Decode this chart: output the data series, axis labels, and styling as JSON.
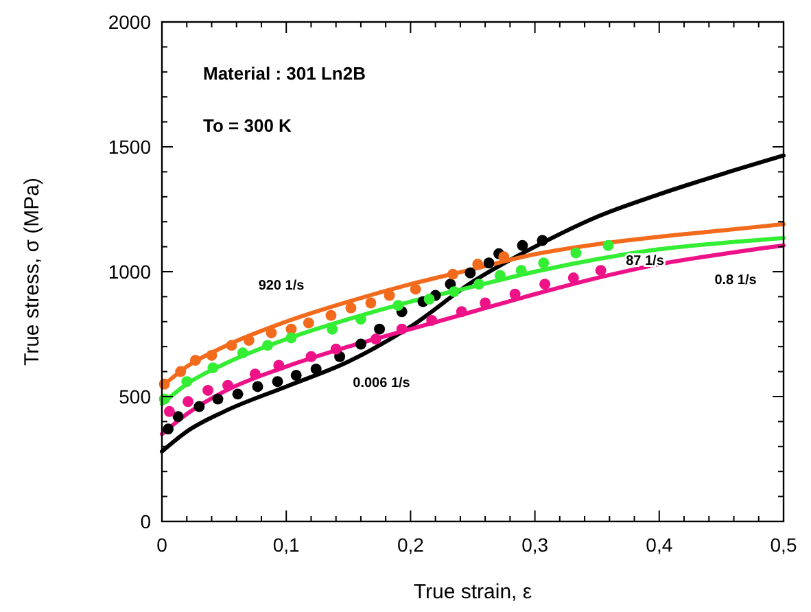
{
  "chart_data": {
    "type": "scatter",
    "xlabel": "True strain, ε",
    "ylabel": "True stress, σ (MPa)",
    "xlim": [
      0,
      0.5
    ],
    "ylim": [
      0,
      2000
    ],
    "xticks": [
      0,
      {
        "value": 0.02,
        "label": null
      },
      {
        "value": 0.04,
        "label": null
      },
      {
        "value": 0.06,
        "label": null
      },
      {
        "value": 0.08,
        "label": null
      },
      {
        "value": 0.1,
        "label": "0,1"
      },
      {
        "value": 0.12,
        "label": null
      },
      {
        "value": 0.14,
        "label": null
      },
      {
        "value": 0.16,
        "label": null
      },
      {
        "value": 0.18,
        "label": null
      },
      {
        "value": 0.2,
        "label": "0,2"
      },
      {
        "value": 0.22,
        "label": null
      },
      {
        "value": 0.24,
        "label": null
      },
      {
        "value": 0.26,
        "label": null
      },
      {
        "value": 0.28,
        "label": null
      },
      {
        "value": 0.3,
        "label": "0,3"
      },
      {
        "value": 0.32,
        "label": null
      },
      {
        "value": 0.34,
        "label": null
      },
      {
        "value": 0.36,
        "label": null
      },
      {
        "value": 0.38,
        "label": null
      },
      {
        "value": 0.4,
        "label": "0,4"
      },
      {
        "value": 0.42,
        "label": null
      },
      {
        "value": 0.44,
        "label": null
      },
      {
        "value": 0.46,
        "label": null
      },
      {
        "value": 0.48,
        "label": null
      },
      {
        "value": 0.5,
        "label": "0,5"
      }
    ],
    "yticks": [
      0,
      {
        "value": 100,
        "label": null
      },
      {
        "value": 200,
        "label": null
      },
      {
        "value": 300,
        "label": null
      },
      {
        "value": 400,
        "label": null
      },
      500,
      {
        "value": 600,
        "label": null
      },
      {
        "value": 700,
        "label": null
      },
      {
        "value": 800,
        "label": null
      },
      {
        "value": 900,
        "label": null
      },
      1000,
      {
        "value": 1100,
        "label": null
      },
      {
        "value": 1200,
        "label": null
      },
      {
        "value": 1300,
        "label": null
      },
      {
        "value": 1400,
        "label": null
      },
      1500,
      {
        "value": 1600,
        "label": null
      },
      {
        "value": 1700,
        "label": null
      },
      {
        "value": 1800,
        "label": null
      },
      {
        "value": 1900,
        "label": null
      },
      2000
    ],
    "grid": false,
    "series": [
      {
        "type": "line",
        "color": "#000000",
        "x": [
          0,
          0.02,
          0.05,
          0.1,
          0.15,
          0.2,
          0.25,
          0.3,
          0.35,
          0.4,
          0.45,
          0.5
        ],
        "values": [
          280,
          360,
          440,
          540,
          640,
          780,
          960,
          1100,
          1220,
          1310,
          1390,
          1465
        ]
      },
      {
        "type": "line",
        "color": "#f26b1d",
        "x": [
          0,
          0.02,
          0.05,
          0.1,
          0.15,
          0.2,
          0.25,
          0.3,
          0.35,
          0.4,
          0.45,
          0.5
        ],
        "values": [
          540,
          620,
          700,
          800,
          880,
          950,
          1010,
          1070,
          1110,
          1140,
          1165,
          1190
        ]
      },
      {
        "type": "line",
        "color": "#33ee33",
        "x": [
          0,
          0.02,
          0.05,
          0.1,
          0.15,
          0.2,
          0.25,
          0.3,
          0.35,
          0.4,
          0.45,
          0.5
        ],
        "values": [
          470,
          550,
          630,
          730,
          810,
          880,
          940,
          1000,
          1050,
          1090,
          1115,
          1135
        ]
      },
      {
        "type": "line",
        "color": "#ee1188",
        "x": [
          0,
          0.02,
          0.05,
          0.1,
          0.15,
          0.2,
          0.25,
          0.3,
          0.35,
          0.4,
          0.45,
          0.5
        ],
        "values": [
          350,
          430,
          520,
          620,
          700,
          770,
          840,
          910,
          975,
          1030,
          1070,
          1105
        ]
      },
      {
        "marker": "circle",
        "color": "#000000",
        "x": [
          0.005,
          0.013,
          0.03,
          0.045,
          0.061,
          0.077,
          0.093,
          0.108,
          0.124,
          0.143,
          0.16,
          0.175,
          0.193,
          0.21,
          0.22,
          0.232,
          0.248,
          0.263,
          0.271,
          0.29,
          0.306
        ],
        "values": [
          370,
          420,
          460,
          490,
          510,
          540,
          560,
          585,
          610,
          660,
          710,
          770,
          840,
          880,
          905,
          950,
          995,
          1035,
          1072,
          1105,
          1125
        ]
      },
      {
        "marker": "circle",
        "color": "#f26b1d",
        "x": [
          0.002,
          0.015,
          0.027,
          0.04,
          0.056,
          0.07,
          0.088,
          0.104,
          0.118,
          0.136,
          0.152,
          0.168,
          0.183,
          0.204,
          0.234,
          0.254,
          0.275
        ],
        "values": [
          550,
          600,
          645,
          665,
          705,
          725,
          755,
          770,
          795,
          825,
          855,
          875,
          905,
          930,
          990,
          1030,
          1060
        ]
      },
      {
        "marker": "circle",
        "color": "#33ee33",
        "x": [
          0.002,
          0.02,
          0.041,
          0.065,
          0.085,
          0.104,
          0.137,
          0.16,
          0.19,
          0.215,
          0.235,
          0.255,
          0.272,
          0.289,
          0.307,
          0.333,
          0.359
        ],
        "values": [
          490,
          560,
          615,
          675,
          705,
          735,
          770,
          810,
          865,
          890,
          920,
          950,
          985,
          1005,
          1035,
          1075,
          1105
        ]
      },
      {
        "marker": "circle",
        "color": "#ee1188",
        "x": [
          0.006,
          0.021,
          0.037,
          0.053,
          0.075,
          0.094,
          0.12,
          0.14,
          0.172,
          0.193,
          0.217,
          0.241,
          0.26,
          0.284,
          0.308,
          0.331,
          0.353
        ],
        "values": [
          440,
          480,
          525,
          545,
          590,
          625,
          660,
          690,
          730,
          770,
          805,
          840,
          875,
          910,
          950,
          975,
          1005
        ]
      }
    ],
    "annotations": [
      "Material : 301 Ln2B",
      "To = 300 K",
      "920 1/s",
      "0.006 1/s",
      "87 1/s",
      "0.8 1/s"
    ]
  }
}
